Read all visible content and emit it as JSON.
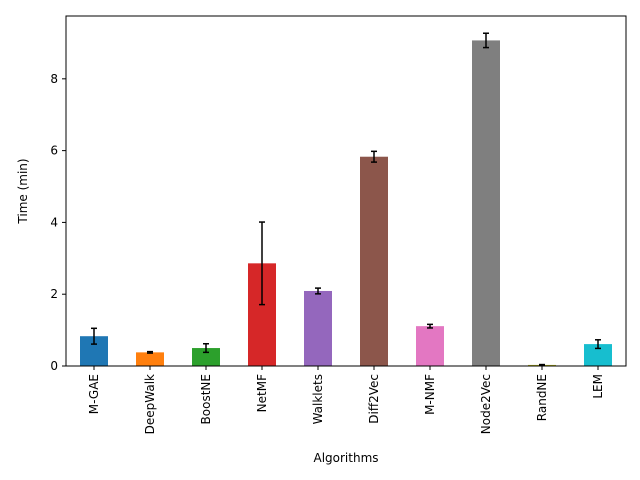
{
  "chart_data": {
    "type": "bar",
    "title": "",
    "xlabel": "Algorithms",
    "ylabel": "Time (min)",
    "ylim": [
      0,
      9.75
    ],
    "yticks": [
      0,
      2,
      4,
      6,
      8
    ],
    "grid": false,
    "legend": "none",
    "categories": [
      "M-GAE",
      "DeepWalk",
      "BoostNE",
      "NetMF",
      "Walklets",
      "Diff2Vec",
      "M-NMF",
      "Node2Vec",
      "RandNE",
      "LEM"
    ],
    "values": [
      0.83,
      0.38,
      0.5,
      2.86,
      2.09,
      5.83,
      1.11,
      9.07,
      0.03,
      0.61
    ],
    "errors": [
      0.22,
      0.02,
      0.12,
      1.15,
      0.08,
      0.15,
      0.05,
      0.2,
      0.01,
      0.12
    ],
    "colors": [
      "#1f77b4",
      "#ff7f0e",
      "#2ca02c",
      "#d62728",
      "#9467bd",
      "#8c564b",
      "#e377c2",
      "#7f7f7f",
      "#bcbd22",
      "#17becf"
    ]
  }
}
